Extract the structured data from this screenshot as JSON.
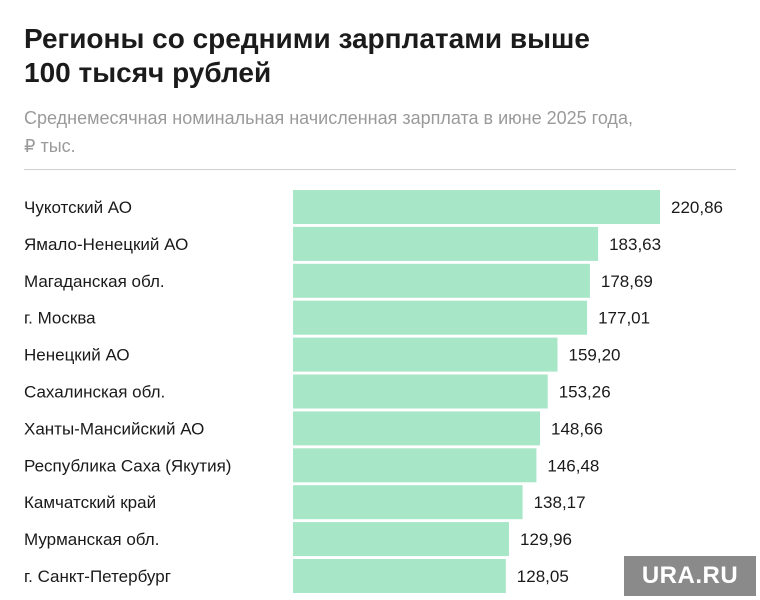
{
  "header": {
    "title_line1": "Регионы со средними зарплатами выше",
    "title_line2": "100 тысяч рублей",
    "subtitle_line1": "Среднемесячная номинальная начисленная зарплата в июне 2025 года,",
    "subtitle_line2": "₽ тыс."
  },
  "chart_data": {
    "type": "bar",
    "orientation": "horizontal",
    "title": "Регионы со средними зарплатами выше 100 тысяч рублей",
    "subtitle": "Среднемесячная номинальная начисленная зарплата в июне 2025 года, ₽ тыс.",
    "categories": [
      "Чукотский АО",
      "Ямало-Ненецкий АО",
      "Магаданская обл.",
      "г. Москва",
      "Ненецкий АО",
      "Сахалинская обл.",
      "Ханты-Мансийский АО",
      "Республика Саха (Якутия)",
      "Камчатский край",
      "Мурманская обл.",
      "г. Санкт-Петербург"
    ],
    "values": [
      220.86,
      183.63,
      178.69,
      177.01,
      159.2,
      153.26,
      148.66,
      146.48,
      138.17,
      129.96,
      128.05
    ],
    "value_labels": [
      "220,86",
      "183,63",
      "178,69",
      "177,01",
      "159,20",
      "153,26",
      "148,66",
      "146,48",
      "138,17",
      "129,96",
      "128,05"
    ],
    "bar_color": "#a8e6c8",
    "xlim": [
      0,
      220.86
    ],
    "xlabel": "",
    "ylabel": ""
  },
  "watermark": {
    "text": "URA.RU"
  }
}
